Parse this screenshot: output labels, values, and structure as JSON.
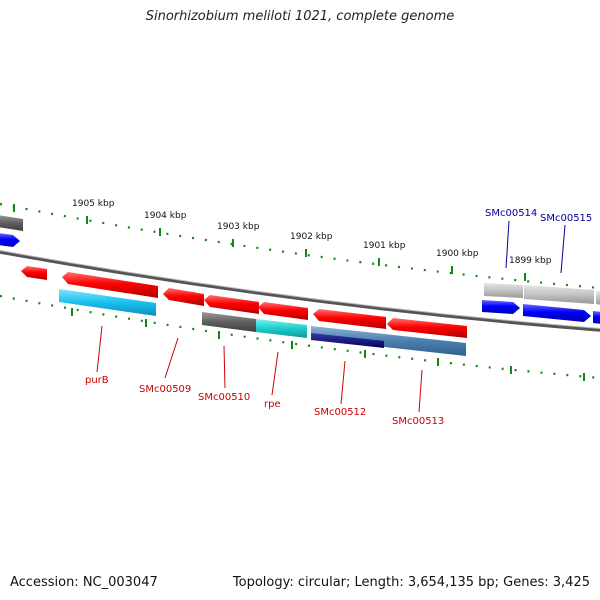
{
  "title": "Sinorhizobium meliloti 1021, complete genome",
  "footer": {
    "accession": "Accession: NC_003047",
    "summary": "Topology: circular; Length: 3,654,135 bp; Genes: 3,425"
  },
  "scale_labels": [
    "1905 kbp",
    "1904 kbp",
    "1903 kbp",
    "1902 kbp",
    "1901 kbp",
    "1900 kbp",
    "1899 kbp"
  ],
  "gene_labels": {
    "purB": "purB",
    "SMc00509": "SMc00509",
    "SMc00510": "SMc00510",
    "rpe": "rpe",
    "SMc00512": "SMc00512",
    "SMc00513": "SMc00513",
    "SMc00514": "SMc00514",
    "SMc00515": "SMc00515"
  },
  "colors": {
    "forward_feature": "#ff0000",
    "reverse_feature": "#ff0000",
    "cds_blue": "#0000ff",
    "backbone": "#777777",
    "tick": "#118811",
    "label_red": "#cc0000",
    "label_blue": "#000099"
  }
}
